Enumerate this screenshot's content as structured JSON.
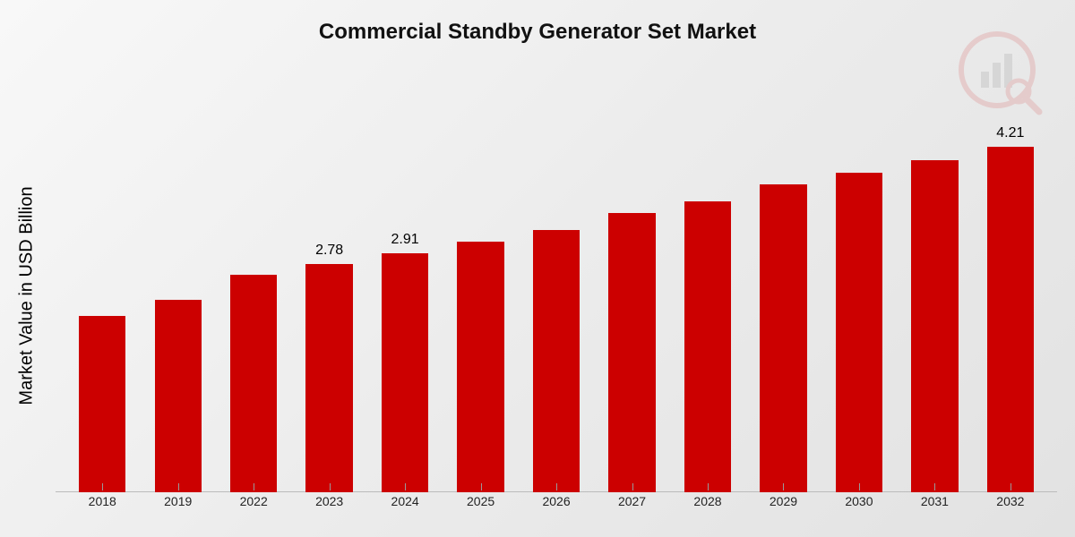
{
  "chart": {
    "type": "bar",
    "title": "Commercial Standby Generator Set Market",
    "title_fontsize": 24,
    "ylabel": "Market Value in USD Billion",
    "ylabel_fontsize": 20,
    "categories": [
      "2018",
      "2019",
      "2022",
      "2023",
      "2024",
      "2025",
      "2026",
      "2027",
      "2028",
      "2029",
      "2030",
      "2031",
      "2032"
    ],
    "values": [
      2.15,
      2.35,
      2.65,
      2.78,
      2.91,
      3.05,
      3.2,
      3.4,
      3.55,
      3.75,
      3.9,
      4.05,
      4.21
    ],
    "value_labels": [
      "",
      "",
      "",
      "2.78",
      "2.91",
      "",
      "",
      "",
      "",
      "",
      "",
      "",
      "4.21"
    ],
    "bar_color": "#cc0000",
    "bar_width": 0.62,
    "background_gradient": [
      "#f8f8f8",
      "#ececec",
      "#e2e2e2"
    ],
    "baseline_color": "#bbbbbb",
    "tick_color": "#999999",
    "tick_label_fontsize": 14,
    "value_label_fontsize": 16,
    "ymax": 4.8,
    "x_axis_year_color": "#222222",
    "watermark": {
      "present": true,
      "opacity": 0.12,
      "shape": "bar-chart-in-circle-with-magnifier",
      "primary_color": "#cc0000",
      "secondary_color": "#555555"
    }
  }
}
